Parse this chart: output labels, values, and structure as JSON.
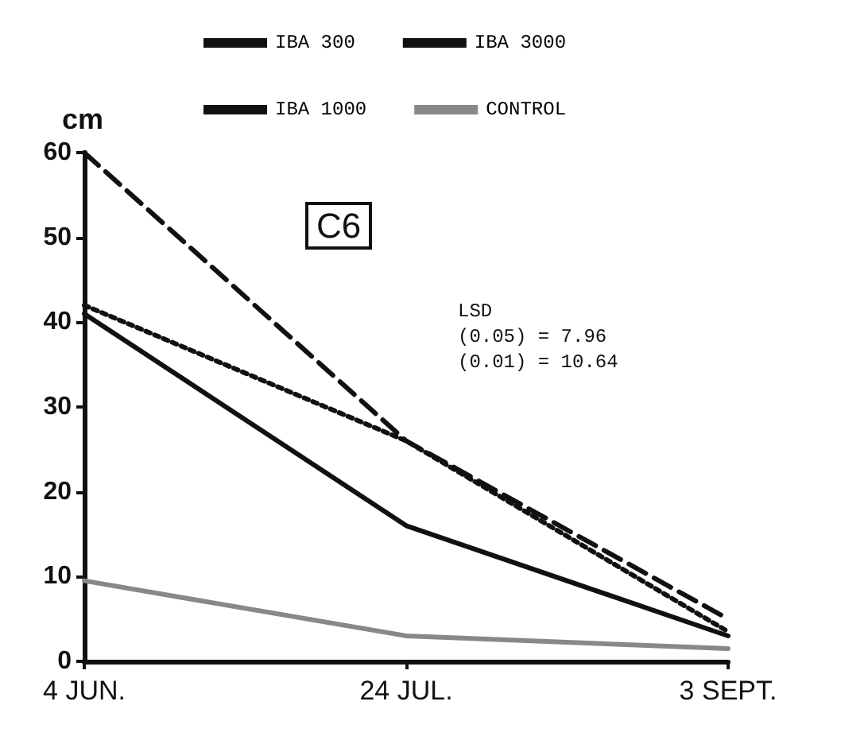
{
  "chart_data": {
    "type": "line",
    "ylabel": "cm",
    "categories": [
      "4 JUN.",
      "24 JUL.",
      "3 SEPT."
    ],
    "series": [
      {
        "name": "IBA 300",
        "color": "#111111",
        "line_style": "solid",
        "values": [
          41,
          16,
          3
        ]
      },
      {
        "name": "IBA 3000",
        "color": "#111111",
        "line_style": "dotted",
        "values": [
          42,
          26,
          3.5
        ]
      },
      {
        "name": "IBA 1000",
        "color": "#111111",
        "line_style": "dashed",
        "values": [
          60,
          26,
          5
        ]
      },
      {
        "name": "CONTROL",
        "color": "#888888",
        "line_style": "solid",
        "values": [
          9.5,
          3,
          1.5
        ]
      }
    ],
    "ylim": [
      0,
      60
    ],
    "yticks": [
      0,
      10,
      20,
      30,
      40,
      50,
      60
    ],
    "grid": false,
    "legend": "top",
    "marker": "none",
    "annotations": [
      "C6",
      "LSD\n(0.05) = 7.96\n(0.01) = 10.64"
    ]
  }
}
